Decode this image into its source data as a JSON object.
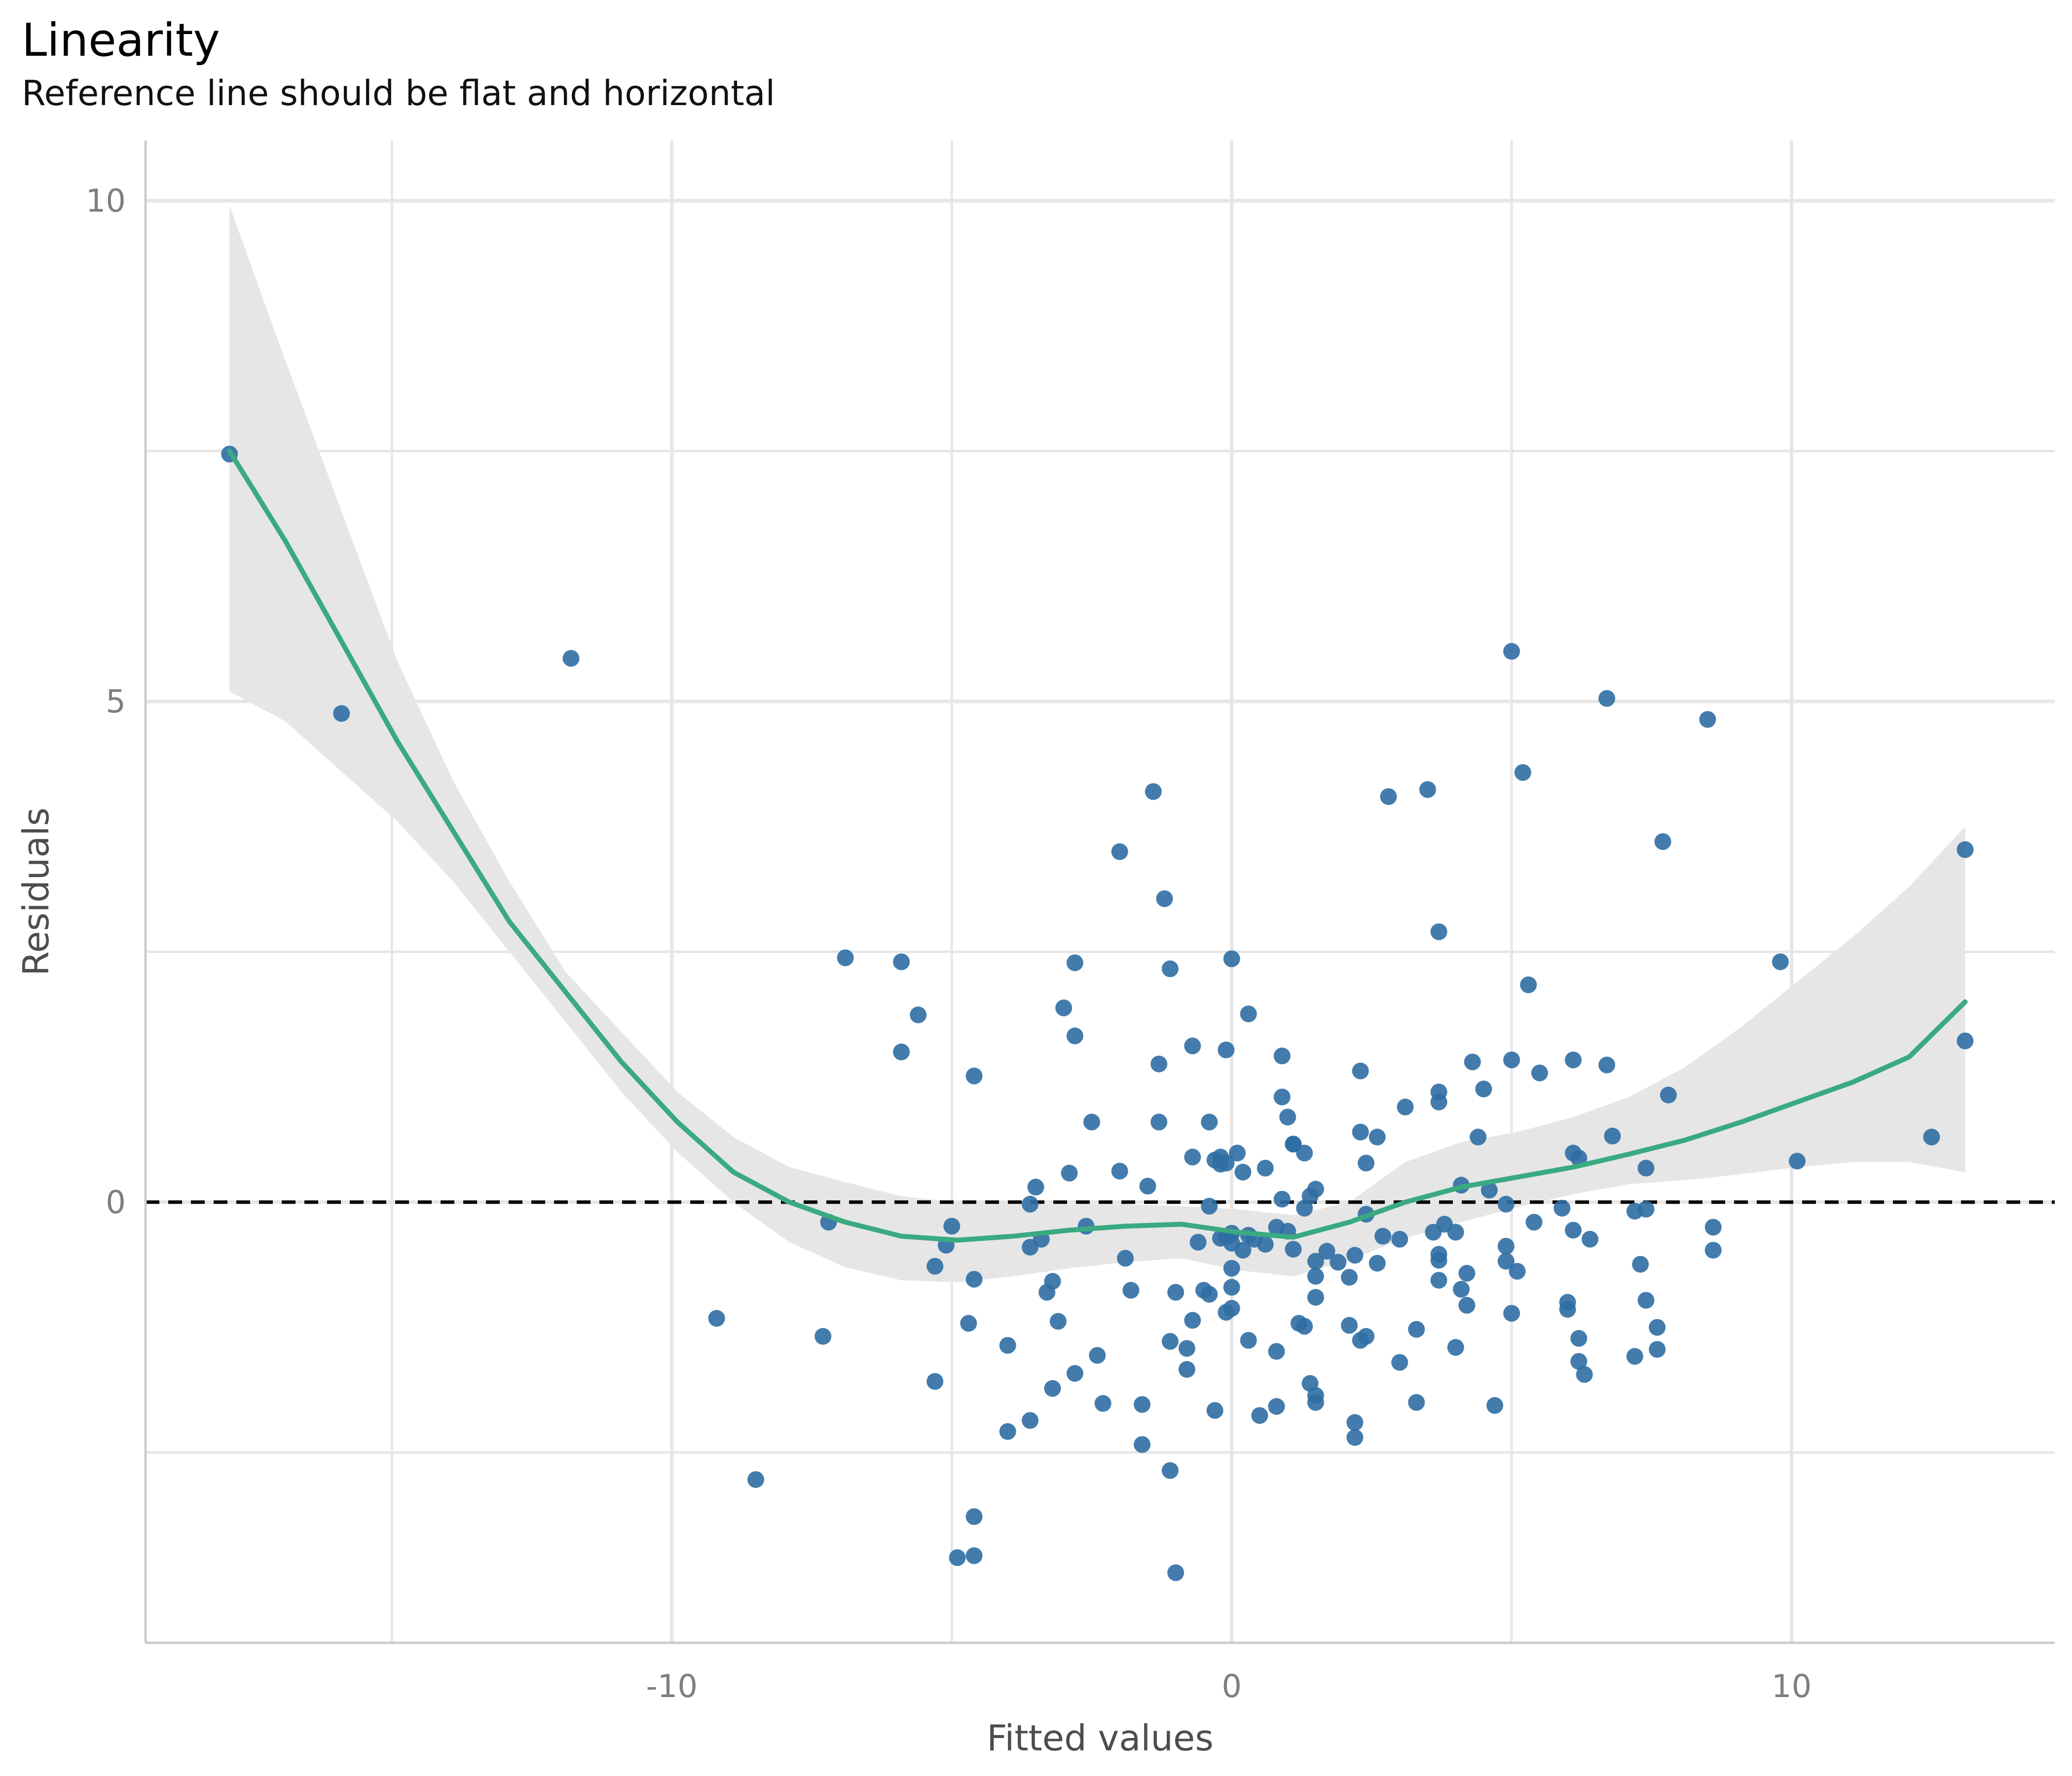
{
  "chart_data": {
    "type": "scatter",
    "title": "Linearity",
    "subtitle": "Reference line should be flat and horizontal",
    "xlabel": "Fitted values",
    "ylabel": "Residuals",
    "xlim": [
      -19.4,
      14.7
    ],
    "ylim": [
      -4.4,
      10.6
    ],
    "x_ticks": [
      -10,
      0,
      10
    ],
    "y_ticks": [
      0,
      5,
      10
    ],
    "x_minor_ticks": [
      -15,
      -5,
      5
    ],
    "y_minor_ticks": [
      -2.5,
      2.5,
      7.5
    ],
    "grid": true,
    "reference_line": {
      "y": 0,
      "style": "dashed",
      "color": "#000000"
    },
    "colors": {
      "points": "#2f6ea3",
      "smooth": "#3aaa80",
      "band": "#e6e6e6"
    },
    "points": [
      [
        -17.9,
        7.47
      ],
      [
        -15.9,
        4.88
      ],
      [
        -11.8,
        5.43
      ],
      [
        -9.2,
        -1.16
      ],
      [
        -8.5,
        -2.77
      ],
      [
        -7.3,
        -1.34
      ],
      [
        -7.2,
        -0.2
      ],
      [
        -6.9,
        2.44
      ],
      [
        -5.9,
        2.4
      ],
      [
        -5.9,
        1.5
      ],
      [
        -5.6,
        1.87
      ],
      [
        -5.3,
        -1.79
      ],
      [
        -5.3,
        -0.64
      ],
      [
        -5.1,
        -0.43
      ],
      [
        -5.0,
        -0.24
      ],
      [
        -4.9,
        -3.55
      ],
      [
        -4.7,
        -1.21
      ],
      [
        -4.6,
        1.26
      ],
      [
        -4.6,
        -0.77
      ],
      [
        -4.6,
        -3.14
      ],
      [
        -4.6,
        -3.53
      ],
      [
        -4.0,
        -1.43
      ],
      [
        -4.0,
        -2.29
      ],
      [
        -3.6,
        -2.18
      ],
      [
        -3.6,
        -0.45
      ],
      [
        -3.6,
        -0.02
      ],
      [
        -3.5,
        0.15
      ],
      [
        -3.4,
        -0.37
      ],
      [
        -3.3,
        -0.9
      ],
      [
        -3.2,
        -0.79
      ],
      [
        -3.2,
        -1.86
      ],
      [
        -3.1,
        -1.19
      ],
      [
        -3.0,
        1.94
      ],
      [
        -2.9,
        0.29
      ],
      [
        -2.8,
        2.39
      ],
      [
        -2.8,
        1.66
      ],
      [
        -2.8,
        -1.71
      ],
      [
        -2.6,
        -0.24
      ],
      [
        -2.5,
        0.8
      ],
      [
        -2.4,
        -1.53
      ],
      [
        -2.3,
        -2.01
      ],
      [
        -2.0,
        0.31
      ],
      [
        -2.0,
        3.5
      ],
      [
        -1.9,
        -0.56
      ],
      [
        -1.8,
        -0.88
      ],
      [
        -1.6,
        -2.42
      ],
      [
        -1.6,
        -2.02
      ],
      [
        -1.5,
        0.16
      ],
      [
        -1.4,
        4.1
      ],
      [
        -1.3,
        1.38
      ],
      [
        -1.3,
        0.8
      ],
      [
        -1.2,
        3.03
      ],
      [
        -1.1,
        2.33
      ],
      [
        -1.1,
        -1.39
      ],
      [
        -1.1,
        -2.68
      ],
      [
        -1.0,
        -0.9
      ],
      [
        -1.0,
        -3.7
      ],
      [
        -0.8,
        -1.46
      ],
      [
        -0.8,
        -1.67
      ],
      [
        -0.7,
        -1.18
      ],
      [
        -0.7,
        1.56
      ],
      [
        -0.7,
        0.45
      ],
      [
        -0.6,
        -0.4
      ],
      [
        -0.5,
        -0.88
      ],
      [
        -0.4,
        0.8
      ],
      [
        -0.4,
        -0.92
      ],
      [
        -0.4,
        -0.04
      ],
      [
        -0.3,
        -2.08
      ],
      [
        -0.3,
        0.42
      ],
      [
        -0.2,
        -0.36
      ],
      [
        -0.2,
        0.45
      ],
      [
        -0.2,
        0.38
      ],
      [
        -0.1,
        1.52
      ],
      [
        -0.1,
        0.39
      ],
      [
        -0.1,
        -0.35
      ],
      [
        -0.1,
        -1.1
      ],
      [
        0.0,
        -0.31
      ],
      [
        0.0,
        -0.41
      ],
      [
        0.0,
        -0.66
      ],
      [
        0.0,
        -0.85
      ],
      [
        0.0,
        -1.06
      ],
      [
        0.0,
        2.43
      ],
      [
        0.1,
        0.49
      ],
      [
        0.2,
        0.3
      ],
      [
        0.2,
        -0.48
      ],
      [
        0.3,
        -0.33
      ],
      [
        0.3,
        1.88
      ],
      [
        0.3,
        -1.38
      ],
      [
        0.4,
        -0.37
      ],
      [
        0.5,
        -2.13
      ],
      [
        0.6,
        0.34
      ],
      [
        0.6,
        -0.42
      ],
      [
        0.8,
        -2.04
      ],
      [
        0.8,
        -1.49
      ],
      [
        0.8,
        -0.25
      ],
      [
        0.9,
        0.03
      ],
      [
        0.9,
        1.46
      ],
      [
        0.9,
        1.05
      ],
      [
        1.0,
        0.85
      ],
      [
        1.0,
        -0.29
      ],
      [
        1.1,
        0.58
      ],
      [
        1.1,
        0.58
      ],
      [
        1.1,
        -0.47
      ],
      [
        1.2,
        -1.21
      ],
      [
        1.3,
        -0.06
      ],
      [
        1.3,
        -1.24
      ],
      [
        1.3,
        0.49
      ],
      [
        1.4,
        0.06
      ],
      [
        1.4,
        -1.81
      ],
      [
        1.5,
        -1.93
      ],
      [
        1.5,
        -2.0
      ],
      [
        1.5,
        -0.59
      ],
      [
        1.5,
        -0.74
      ],
      [
        1.5,
        0.13
      ],
      [
        1.5,
        -0.95
      ],
      [
        1.7,
        -0.49
      ],
      [
        1.9,
        -0.6
      ],
      [
        2.1,
        -0.75
      ],
      [
        2.1,
        -1.23
      ],
      [
        2.2,
        -2.2
      ],
      [
        2.2,
        -2.35
      ],
      [
        2.2,
        -0.53
      ],
      [
        2.3,
        0.7
      ],
      [
        2.3,
        -1.38
      ],
      [
        2.3,
        1.31
      ],
      [
        2.4,
        0.39
      ],
      [
        2.4,
        -0.12
      ],
      [
        2.4,
        -1.34
      ],
      [
        2.6,
        0.65
      ],
      [
        2.6,
        -0.61
      ],
      [
        2.7,
        -0.34
      ],
      [
        2.8,
        4.05
      ],
      [
        3.0,
        -0.37
      ],
      [
        3.0,
        -1.6
      ],
      [
        3.1,
        0.95
      ],
      [
        3.3,
        -1.27
      ],
      [
        3.3,
        -2.0
      ],
      [
        3.5,
        4.12
      ],
      [
        3.6,
        -0.3
      ],
      [
        3.7,
        2.7
      ],
      [
        3.7,
        1.1
      ],
      [
        3.7,
        -0.78
      ],
      [
        3.7,
        1.0
      ],
      [
        3.7,
        -0.52
      ],
      [
        3.7,
        -0.58
      ],
      [
        3.8,
        -0.22
      ],
      [
        4.0,
        -0.3
      ],
      [
        4.0,
        -1.45
      ],
      [
        4.1,
        -0.87
      ],
      [
        4.1,
        0.17
      ],
      [
        4.2,
        -0.71
      ],
      [
        4.2,
        -1.03
      ],
      [
        4.3,
        1.4
      ],
      [
        4.4,
        0.65
      ],
      [
        4.5,
        1.13
      ],
      [
        4.6,
        0.12
      ],
      [
        4.7,
        -2.03
      ],
      [
        4.9,
        -0.02
      ],
      [
        4.9,
        -0.44
      ],
      [
        4.9,
        -0.59
      ],
      [
        5.0,
        1.42
      ],
      [
        5.0,
        5.5
      ],
      [
        5.0,
        -1.11
      ],
      [
        5.1,
        -0.69
      ],
      [
        5.2,
        4.29
      ],
      [
        5.3,
        2.17
      ],
      [
        5.4,
        -0.2
      ],
      [
        5.5,
        1.29
      ],
      [
        5.9,
        -0.06
      ],
      [
        6.0,
        -1.0
      ],
      [
        6.0,
        -1.07
      ],
      [
        6.1,
        1.42
      ],
      [
        6.1,
        0.49
      ],
      [
        6.1,
        -0.28
      ],
      [
        6.2,
        -1.36
      ],
      [
        6.2,
        -1.59
      ],
      [
        6.2,
        0.44
      ],
      [
        6.3,
        -1.72
      ],
      [
        6.4,
        -0.37
      ],
      [
        6.7,
        1.37
      ],
      [
        6.7,
        5.03
      ],
      [
        6.8,
        0.66
      ],
      [
        7.2,
        -0.09
      ],
      [
        7.2,
        -1.54
      ],
      [
        7.3,
        -0.62
      ],
      [
        7.4,
        -0.98
      ],
      [
        7.4,
        -0.07
      ],
      [
        7.4,
        0.34
      ],
      [
        7.6,
        -1.25
      ],
      [
        7.6,
        -1.47
      ],
      [
        7.7,
        3.6
      ],
      [
        7.8,
        1.07
      ],
      [
        8.5,
        4.82
      ],
      [
        8.6,
        -0.25
      ],
      [
        8.6,
        -0.48
      ],
      [
        9.8,
        2.4
      ],
      [
        10.1,
        0.41
      ],
      [
        12.5,
        0.65
      ],
      [
        13.1,
        3.52
      ],
      [
        13.1,
        1.61
      ]
    ],
    "smooth": {
      "x": [
        -17.9,
        -16.9,
        -15.9,
        -14.9,
        -13.9,
        -12.9,
        -11.9,
        -10.9,
        -9.9,
        -8.9,
        -7.9,
        -6.9,
        -5.9,
        -4.9,
        -3.9,
        -2.9,
        -1.9,
        -0.9,
        0.1,
        1.1,
        2.1,
        3.1,
        4.1,
        5.1,
        6.1,
        7.1,
        8.1,
        9.1,
        10.1,
        11.1,
        12.1,
        13.1
      ],
      "y": [
        7.5,
        6.6,
        5.6,
        4.6,
        3.7,
        2.8,
        2.1,
        1.4,
        0.8,
        0.3,
        0.0,
        -0.2,
        -0.34,
        -0.38,
        -0.34,
        -0.28,
        -0.24,
        -0.22,
        -0.3,
        -0.35,
        -0.2,
        0.0,
        0.15,
        0.25,
        0.35,
        0.48,
        0.62,
        0.8,
        1.0,
        1.2,
        1.45,
        2.0
      ],
      "ci_upper": [
        9.95,
        8.4,
        6.9,
        5.4,
        4.2,
        3.2,
        2.3,
        1.7,
        1.1,
        0.65,
        0.35,
        0.2,
        0.06,
        0.0,
        -0.02,
        -0.02,
        -0.02,
        -0.04,
        -0.07,
        -0.13,
        0.0,
        0.4,
        0.6,
        0.7,
        0.85,
        1.05,
        1.35,
        1.75,
        2.2,
        2.65,
        3.15,
        3.75
      ],
      "ci_lower": [
        5.1,
        4.8,
        4.3,
        3.8,
        3.2,
        2.5,
        1.8,
        1.1,
        0.5,
        0.0,
        -0.4,
        -0.65,
        -0.78,
        -0.8,
        -0.74,
        -0.66,
        -0.6,
        -0.56,
        -0.68,
        -0.74,
        -0.58,
        -0.36,
        -0.2,
        -0.05,
        0.08,
        0.18,
        0.22,
        0.28,
        0.35,
        0.4,
        0.4,
        0.3
      ]
    }
  }
}
